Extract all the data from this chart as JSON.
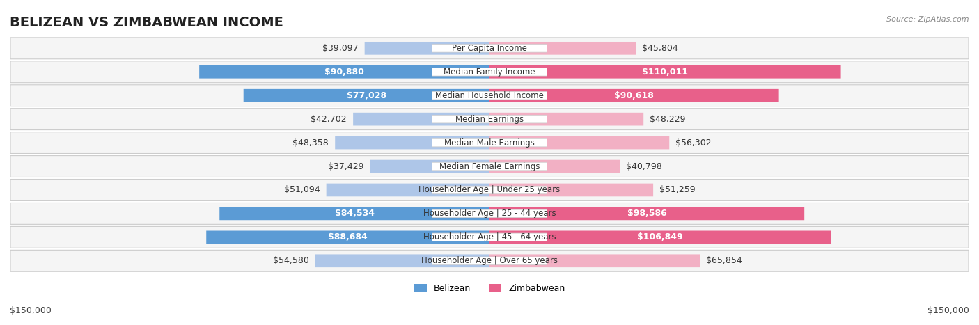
{
  "title": "BELIZEAN VS ZIMBABWEAN INCOME",
  "source": "Source: ZipAtlas.com",
  "categories": [
    "Per Capita Income",
    "Median Family Income",
    "Median Household Income",
    "Median Earnings",
    "Median Male Earnings",
    "Median Female Earnings",
    "Householder Age | Under 25 years",
    "Householder Age | 25 - 44 years",
    "Householder Age | 45 - 64 years",
    "Householder Age | Over 65 years"
  ],
  "belizean": [
    39097,
    90880,
    77028,
    42702,
    48358,
    37429,
    51094,
    84534,
    88684,
    54580
  ],
  "zimbabwean": [
    45804,
    110011,
    90618,
    48229,
    56302,
    40798,
    51259,
    98586,
    106849,
    65854
  ],
  "belizean_labels": [
    "$39,097",
    "$90,880",
    "$77,028",
    "$42,702",
    "$48,358",
    "$37,429",
    "$51,094",
    "$84,534",
    "$88,684",
    "$54,580"
  ],
  "zimbabwean_labels": [
    "$45,804",
    "$110,011",
    "$90,618",
    "$48,229",
    "$56,302",
    "$40,798",
    "$51,259",
    "$98,586",
    "$106,849",
    "$65,854"
  ],
  "belizean_label_inside": [
    false,
    true,
    true,
    false,
    false,
    false,
    false,
    true,
    true,
    false
  ],
  "zimbabwean_label_inside": [
    false,
    true,
    true,
    false,
    false,
    false,
    false,
    true,
    true,
    false
  ],
  "max_val": 150000,
  "belizean_bar_color_inside": "#5b9bd5",
  "belizean_bar_color_outside": "#aec6e8",
  "zimbabwean_bar_color_inside": "#e8608a",
  "zimbabwean_bar_color_outside": "#f2b0c4",
  "row_bg_color": "#f0f0f0",
  "label_font_size": 9,
  "title_font_size": 14,
  "category_font_size": 8.5,
  "legend_belizean": "Belizean",
  "legend_zimbabwean": "Zimbabwean",
  "axis_label_left": "$150,000",
  "axis_label_right": "$150,000"
}
